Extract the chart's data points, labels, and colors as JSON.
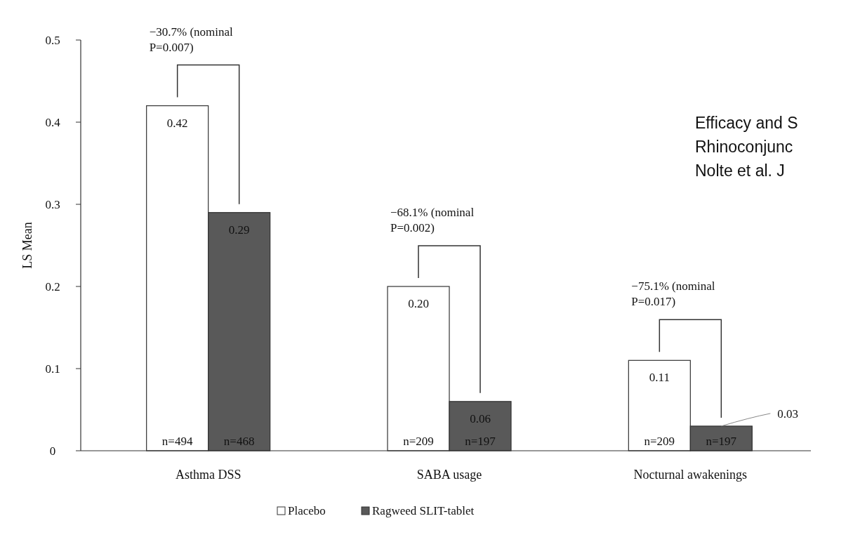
{
  "chart_data": {
    "type": "bar",
    "ylabel": "LS Mean",
    "categories": [
      "Asthma DSS",
      "SABA usage",
      "Nocturnal awakenings"
    ],
    "series": [
      {
        "name": "Placebo",
        "color": "#ffffff",
        "values": [
          0.42,
          0.2,
          0.11
        ],
        "value_labels": [
          "0.42",
          "0.20",
          "0.11"
        ]
      },
      {
        "name": "Ragweed SLIT-tablet",
        "color": "#595959",
        "values": [
          0.29,
          0.06,
          0.03
        ],
        "value_labels": [
          "0.29",
          "0.06",
          "0.03"
        ]
      }
    ],
    "ylim": [
      0,
      0.5
    ],
    "yticks": [
      0,
      0.1,
      0.2,
      0.3,
      0.4,
      0.5
    ],
    "grid": false,
    "legend": "bottom",
    "annotations": [
      "−30.7% (nominal\nP=0.007)",
      "−68.1% (nominal\nP=0.002)",
      "−75.1% (nominal\nP=0.017)",
      {
        "text": "n=494",
        "x": "Asthma DSS",
        "y": 0
      },
      {
        "text": "n=468",
        "x": "Asthma DSS",
        "y": 0
      },
      {
        "text": "n=209",
        "x": "SABA usage",
        "y": 0
      },
      {
        "text": "n=197",
        "x": "SABA usage",
        "y": 0
      },
      {
        "text": "n=209",
        "x": "Nocturnal awakenings",
        "y": 0
      },
      {
        "text": "n=197",
        "x": "Nocturnal awakenings",
        "y": 0
      },
      "Efficacy and S\nRhinoconjunc\nNolte et al. J"
    ]
  }
}
